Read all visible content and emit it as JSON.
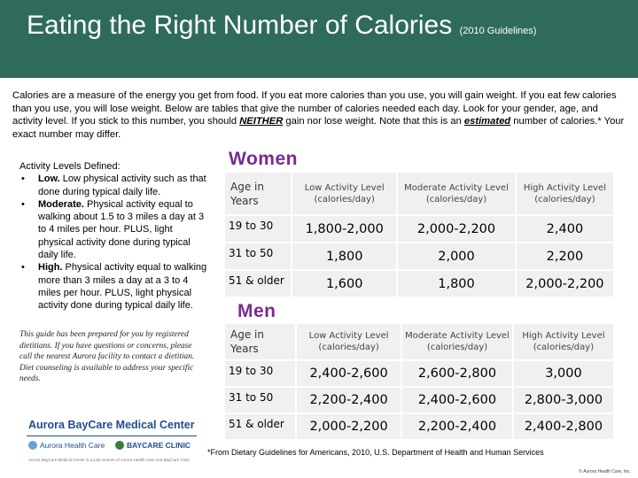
{
  "header": {
    "title": "Eating the Right Number of Calories",
    "subtitle": "(2010 Guidelines)"
  },
  "intro": {
    "part1": "Calories are a measure of  the energy you get from food. If you eat more calories than you use, you will gain weight. If you eat few calories than you use, you will lose weight. Below are tables that give the number of calories needed each day. Look for your gender, age, and activity level. If you stick to this number, you should ",
    "emphasis1": "NEITHER",
    "part2": " gain nor lose weight. Note that this is an ",
    "emphasis2": "estimated",
    "part3": " number of calories.* Your exact number may differ."
  },
  "activity_levels": {
    "heading": "Activity Levels Defined:",
    "items": [
      {
        "term": "Low.",
        "text": " Low physical activity such as that done during typical daily life."
      },
      {
        "term": "Moderate.",
        "text": " Physical activity equal to walking about 1.5 to 3 miles a day at 3 to 4 miles per hour. PLUS, light physical activity done during typical daily life."
      },
      {
        "term": "High.",
        "text": " Physical activity equal to walking more than 3 miles a day at a 3 to 4 miles per hour. PLUS, light physical activity done during typical daily life."
      }
    ]
  },
  "note": "This guide has been prepared for you by registered dietitians. If you have questions or concerns, please call the nearest Aurora facility to contact a dietitian. Diet counseling is available to address your specific needs.",
  "logo": {
    "name": "Aurora BayCare Medical Center",
    "partner1": "Aurora Health Care",
    "partner2": "BAYCARE CLINIC",
    "tagline": "Aurora BayCare Medical Center is a joint venture of Aurora Health Care and BayCare Clinic"
  },
  "women": {
    "title": "Women",
    "headers": [
      "Age in Years",
      "Low Activity Level (calories/day)",
      "Moderate Activity Level (calories/day)",
      "High Activity Level (calories/day)"
    ],
    "rows": [
      [
        "19 to 30",
        "1,800-2,000",
        "2,000-2,200",
        "2,400"
      ],
      [
        "31 to 50",
        "1,800",
        "2,000",
        "2,200"
      ],
      [
        "51 & older",
        "1,600",
        "1,800",
        "2,000-2,200"
      ]
    ]
  },
  "men": {
    "title": "Men",
    "headers": [
      "Age in Years",
      "Low Activity Level (calories/day)",
      "Moderate Activity Level (calories/day)",
      "High Activity Level (calories/day)"
    ],
    "rows": [
      [
        "19 to 30",
        "2,400-2,600",
        "2,600-2,800",
        "3,000"
      ],
      [
        "31 to 50",
        "2,200-2,400",
        "2,400-2,600",
        "2,800-3,000"
      ],
      [
        "51 & older",
        "2,000-2,200",
        "2,200-2,400",
        "2,400-2,800"
      ]
    ]
  },
  "footnote": "*From Dietary Guidelines for Americans, 2010, U.S. Department of Health and Human Services",
  "copyright": "© Aurora Health Care, Inc.",
  "colors": {
    "header_bg": "#2f6b5c",
    "section_title": "#7b2a8e",
    "cell_bg": "#f0f0f0",
    "logo_blue": "#1f4e8a"
  }
}
